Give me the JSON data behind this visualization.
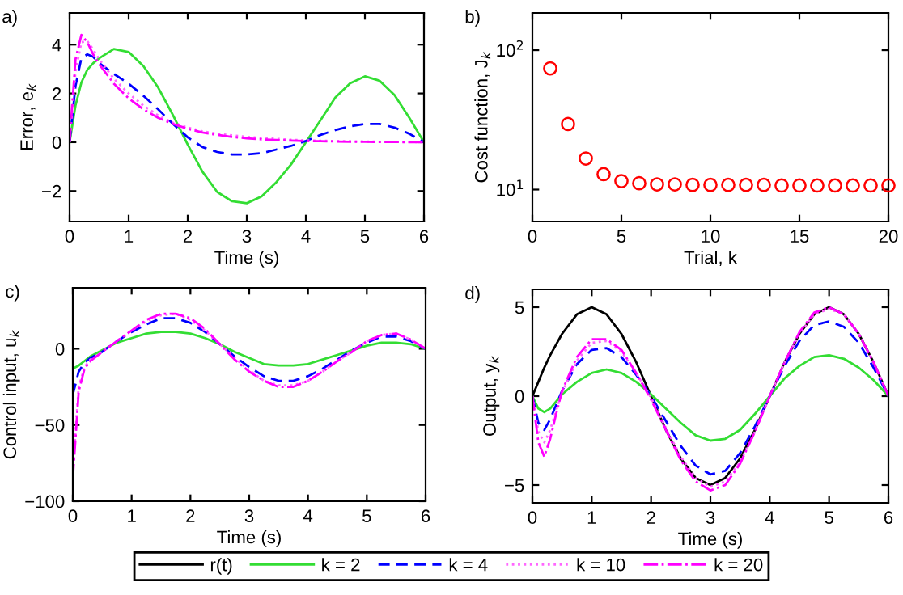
{
  "chart_data": [
    {
      "type": "line",
      "annotations": [
        "a)"
      ],
      "xlabel": "Time (s)",
      "ylabel": "Error, e$_{k}$",
      "xlim": [
        0,
        6
      ],
      "ylim": [
        -3.25,
        5.3
      ],
      "xticks": [
        0,
        1,
        2,
        3,
        4,
        5,
        6
      ],
      "yticks": [
        {
          "value": -2,
          "label": "−2"
        },
        0,
        2,
        4
      ],
      "grid": false,
      "x": [
        0,
        0.1,
        0.2,
        0.3,
        0.4,
        0.5,
        0.75,
        1,
        1.25,
        1.5,
        1.75,
        2,
        2.25,
        2.5,
        2.75,
        3,
        3.25,
        3.5,
        3.75,
        4,
        4.25,
        4.5,
        4.75,
        5,
        5.25,
        5.5,
        5.75,
        6
      ],
      "series": [
        {
          "color": "#33dd33",
          "line_style": "solid",
          "values": [
            0,
            1.5,
            2.45,
            2.97,
            3.24,
            3.44,
            3.82,
            3.7,
            3.12,
            2.24,
            1.11,
            -0.1,
            -1.21,
            -2.04,
            -2.42,
            -2.5,
            -2.22,
            -1.64,
            -0.91,
            0,
            0.91,
            1.84,
            2.42,
            2.7,
            2.52,
            1.94,
            1.01,
            0
          ]
        },
        {
          "color": "#0000ff",
          "line_style": "dashed",
          "values": [
            0,
            2.3,
            3.45,
            3.6,
            3.5,
            3.25,
            2.8,
            2.4,
            1.9,
            1.35,
            0.75,
            0.2,
            -0.2,
            -0.4,
            -0.5,
            -0.5,
            -0.45,
            -0.3,
            -0.15,
            0.05,
            0.3,
            0.5,
            0.65,
            0.75,
            0.75,
            0.6,
            0.35,
            0
          ]
        },
        {
          "color": "#ff66ff",
          "line_style": "dotted",
          "values": [
            0,
            2.9,
            4.1,
            4.15,
            3.8,
            3.4,
            2.6,
            2.0,
            1.5,
            1.1,
            0.8,
            0.6,
            0.45,
            0.35,
            0.28,
            0.22,
            0.18,
            0.14,
            0.1,
            0.08,
            0.06,
            0.05,
            0.04,
            0.03,
            0.02,
            0.02,
            0.01,
            0
          ]
        },
        {
          "color": "#ff00ff",
          "line_style": "dashdot",
          "values": [
            0,
            3.4,
            4.4,
            4.1,
            3.6,
            3.2,
            2.4,
            1.8,
            1.35,
            1.0,
            0.75,
            0.55,
            0.4,
            0.3,
            0.22,
            0.16,
            0.12,
            0.09,
            0.07,
            0.05,
            0.04,
            0.03,
            0.02,
            0.02,
            0.01,
            0.01,
            0,
            0
          ]
        }
      ]
    },
    {
      "type": "scatter",
      "annotations": [
        "b)"
      ],
      "xlabel": "Trial, k",
      "ylabel": "Cost function, J$_{k}$",
      "log": "y",
      "xlim": [
        0,
        20
      ],
      "ylim": [
        5.9,
        185
      ],
      "xticks": [
        0,
        5,
        10,
        15,
        20
      ],
      "yticks": [
        {
          "value": 10,
          "label": "10$^{1}$"
        },
        {
          "value": 100,
          "label": "10$^{2}$"
        }
      ],
      "grid": false,
      "marker": "circle",
      "x": [
        1,
        2,
        3,
        4,
        5,
        6,
        7,
        8,
        9,
        10,
        11,
        12,
        13,
        14,
        15,
        16,
        17,
        18,
        19,
        20
      ],
      "series": [
        {
          "color": "#ff0000",
          "values": [
            74,
            29.5,
            16.7,
            12.9,
            11.5,
            11.1,
            10.9,
            10.9,
            10.8,
            10.8,
            10.8,
            10.8,
            10.8,
            10.7,
            10.7,
            10.7,
            10.7,
            10.7,
            10.7,
            10.7
          ]
        }
      ]
    },
    {
      "type": "line",
      "annotations": [
        "c)"
      ],
      "xlabel": "Time (s)",
      "ylabel": "Control input, u$_{k}$",
      "xlim": [
        0,
        6
      ],
      "ylim": [
        -100,
        40
      ],
      "xticks": [
        0,
        1,
        2,
        3,
        4,
        5,
        6
      ],
      "yticks": [
        {
          "value": -100,
          "label": "−100"
        },
        {
          "value": -50,
          "label": "−50"
        },
        0
      ],
      "grid": false,
      "x": [
        0,
        0.1,
        0.2,
        0.3,
        0.4,
        0.5,
        0.75,
        1,
        1.25,
        1.5,
        1.75,
        2,
        2.25,
        2.5,
        2.75,
        3,
        3.25,
        3.5,
        3.75,
        4,
        4.25,
        4.5,
        4.75,
        5,
        5.25,
        5.5,
        5.75,
        6
      ],
      "series": [
        {
          "color": "#33dd33",
          "line_style": "solid",
          "values": [
            -13,
            -11,
            -8,
            -5,
            -3,
            -1,
            4,
            7,
            10,
            11,
            11,
            10,
            7,
            3,
            -2,
            -6,
            -10,
            -11,
            -11,
            -10,
            -7,
            -4,
            -1,
            2,
            4,
            4,
            3,
            0
          ]
        },
        {
          "color": "#0000ff",
          "line_style": "dashed",
          "values": [
            -30,
            -15,
            -9,
            -6,
            -4,
            -2,
            5,
            11,
            16,
            20,
            20,
            17,
            11,
            3,
            -5,
            -12,
            -18,
            -21,
            -21,
            -18,
            -13,
            -7,
            -1,
            4,
            8,
            8,
            5,
            0
          ]
        },
        {
          "color": "#ff66ff",
          "line_style": "dotted",
          "values": [
            -80,
            -25,
            -12,
            -7,
            -5,
            -2,
            5,
            12,
            18,
            22,
            23,
            19,
            12,
            3,
            -6,
            -14,
            -21,
            -24,
            -24,
            -21,
            -15,
            -8,
            -2,
            5,
            9,
            10,
            6,
            0
          ]
        },
        {
          "color": "#ff00ff",
          "line_style": "dashdot",
          "values": [
            -85,
            -28,
            -13,
            -8,
            -5,
            -2,
            5,
            12,
            19,
            23,
            23,
            20,
            13,
            3,
            -7,
            -15,
            -21,
            -25,
            -25,
            -21,
            -15,
            -8,
            -2,
            5,
            9,
            10,
            6,
            0
          ]
        }
      ]
    },
    {
      "type": "line",
      "annotations": [
        "d)"
      ],
      "xlabel": "Time (s)",
      "ylabel": "Output, y$_{k}$",
      "xlim": [
        0,
        6
      ],
      "ylim": [
        -6,
        6
      ],
      "xticks": [
        0,
        1,
        2,
        3,
        4,
        5,
        6
      ],
      "yticks": [
        {
          "value": -5,
          "label": "−5"
        },
        0,
        5
      ],
      "grid": false,
      "legend": "bottom",
      "x": [
        0,
        0.1,
        0.2,
        0.3,
        0.4,
        0.5,
        0.75,
        1,
        1.25,
        1.5,
        1.75,
        2,
        2.25,
        2.5,
        2.75,
        3,
        3.25,
        3.5,
        3.75,
        4,
        4.25,
        4.5,
        4.75,
        5,
        5.25,
        5.5,
        5.75,
        6
      ],
      "series": [
        {
          "name": "r(t)",
          "color": "#000000",
          "line_style": "solid",
          "values": [
            0,
            0.8,
            1.6,
            2.3,
            2.9,
            3.5,
            4.6,
            5,
            4.6,
            3.5,
            1.9,
            0,
            -1.9,
            -3.5,
            -4.6,
            -5,
            -4.6,
            -3.5,
            -1.9,
            0,
            1.9,
            3.5,
            4.6,
            5,
            4.6,
            3.5,
            1.9,
            0
          ]
        },
        {
          "name": "k = 2",
          "color": "#33dd33",
          "line_style": "solid",
          "values": [
            0,
            -0.7,
            -0.9,
            -0.7,
            -0.3,
            0.1,
            0.8,
            1.3,
            1.5,
            1.3,
            0.8,
            0.1,
            -0.7,
            -1.5,
            -2.2,
            -2.5,
            -2.4,
            -1.9,
            -1.0,
            0,
            1.0,
            1.7,
            2.2,
            2.3,
            2.1,
            1.6,
            0.9,
            0
          ]
        },
        {
          "name": "k = 4",
          "color": "#0000ff",
          "line_style": "dashed",
          "values": [
            0,
            -1.5,
            -1.9,
            -1.3,
            -0.5,
            0.3,
            1.8,
            2.6,
            2.7,
            2.2,
            1.2,
            0,
            -1.4,
            -2.8,
            -3.9,
            -4.4,
            -4.2,
            -3.2,
            -1.7,
            0,
            1.7,
            3.1,
            4.0,
            4.2,
            3.9,
            3.0,
            1.6,
            0
          ]
        },
        {
          "name": "k = 10",
          "color": "#ff66ff",
          "line_style": "dotted",
          "values": [
            0,
            -2.0,
            -2.6,
            -1.9,
            -0.8,
            0.2,
            2.0,
            3.0,
            3.1,
            2.5,
            1.3,
            -0.1,
            -1.8,
            -3.4,
            -4.6,
            -5.1,
            -4.8,
            -3.7,
            -2.0,
            0,
            1.9,
            3.5,
            4.6,
            4.9,
            4.6,
            3.5,
            1.9,
            0
          ]
        },
        {
          "name": "k = 20",
          "color": "#ff00ff",
          "line_style": "dashdot",
          "values": [
            0,
            -2.6,
            -3.4,
            -2.4,
            -1.0,
            0.3,
            2.2,
            3.2,
            3.2,
            2.6,
            1.3,
            -0.2,
            -1.9,
            -3.6,
            -4.8,
            -5.3,
            -5.0,
            -3.8,
            -2.0,
            0,
            1.9,
            3.6,
            4.7,
            5.0,
            4.6,
            3.5,
            1.9,
            0
          ]
        }
      ]
    }
  ]
}
